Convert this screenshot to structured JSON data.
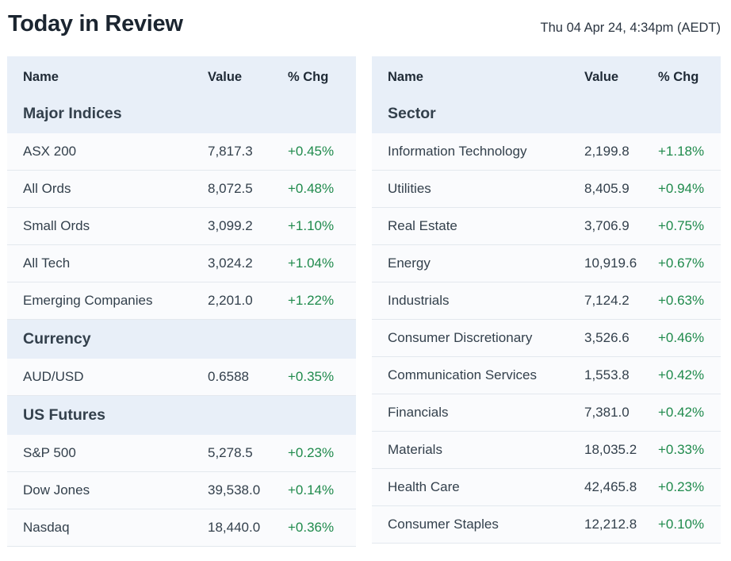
{
  "header": {
    "title": "Today in Review",
    "timestamp": "Thu 04 Apr 24, 4:34pm (AEDT)"
  },
  "left_table": {
    "columns": {
      "name": "Name",
      "value": "Value",
      "chg": "% Chg"
    },
    "sections": [
      {
        "title": "Major Indices",
        "rows": [
          {
            "name": "ASX 200",
            "value": "7,817.3",
            "chg": "+0.45%"
          },
          {
            "name": "All Ords",
            "value": "8,072.5",
            "chg": "+0.48%"
          },
          {
            "name": "Small Ords",
            "value": "3,099.2",
            "chg": "+1.10%"
          },
          {
            "name": "All Tech",
            "value": "3,024.2",
            "chg": "+1.04%"
          },
          {
            "name": "Emerging Companies",
            "value": "2,201.0",
            "chg": "+1.22%"
          }
        ]
      },
      {
        "title": "Currency",
        "rows": [
          {
            "name": "AUD/USD",
            "value": "0.6588",
            "chg": "+0.35%"
          }
        ]
      },
      {
        "title": "US Futures",
        "rows": [
          {
            "name": "S&P 500",
            "value": "5,278.5",
            "chg": "+0.23%"
          },
          {
            "name": "Dow Jones",
            "value": "39,538.0",
            "chg": "+0.14%"
          },
          {
            "name": "Nasdaq",
            "value": "18,440.0",
            "chg": "+0.36%"
          }
        ]
      }
    ]
  },
  "right_table": {
    "columns": {
      "name": "Name",
      "value": "Value",
      "chg": "% Chg"
    },
    "sections": [
      {
        "title": "Sector",
        "rows": [
          {
            "name": "Information Technology",
            "value": "2,199.8",
            "chg": "+1.18%"
          },
          {
            "name": "Utilities",
            "value": "8,405.9",
            "chg": "+0.94%"
          },
          {
            "name": "Real Estate",
            "value": "3,706.9",
            "chg": "+0.75%"
          },
          {
            "name": "Energy",
            "value": "10,919.6",
            "chg": "+0.67%"
          },
          {
            "name": "Industrials",
            "value": "7,124.2",
            "chg": "+0.63%"
          },
          {
            "name": "Consumer Discretionary",
            "value": "3,526.6",
            "chg": "+0.46%"
          },
          {
            "name": "Communication Services",
            "value": "1,553.8",
            "chg": "+0.42%"
          },
          {
            "name": "Financials",
            "value": "7,381.0",
            "chg": "+0.42%"
          },
          {
            "name": "Materials",
            "value": "18,035.2",
            "chg": "+0.33%"
          },
          {
            "name": "Health Care",
            "value": "42,465.8",
            "chg": "+0.23%"
          },
          {
            "name": "Consumer Staples",
            "value": "12,212.8",
            "chg": "+0.10%"
          }
        ]
      }
    ]
  },
  "colors": {
    "positive": "#1f8a4c",
    "header_bg": "#e8eff8",
    "row_bg": "#fafbfd"
  }
}
